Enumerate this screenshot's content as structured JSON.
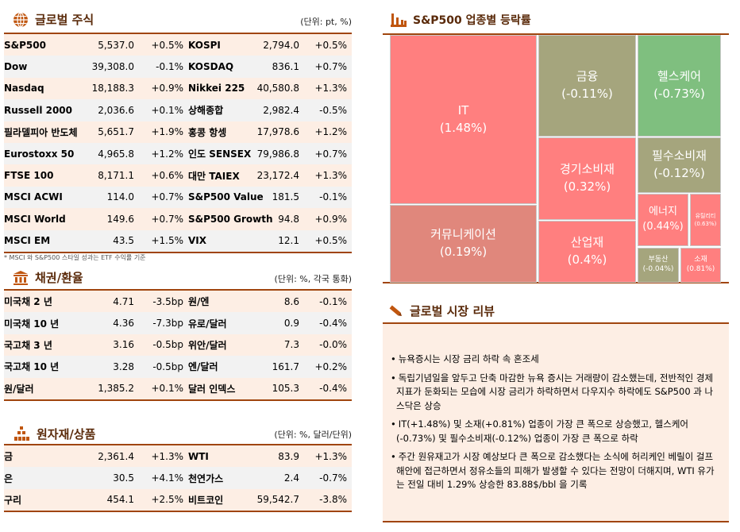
{
  "global_stocks": {
    "title": "글로벌 주식",
    "unit": "(단위: pt, %)",
    "icon": "globe-icon",
    "rows": [
      [
        "S&P500",
        "5,537.0",
        "+0.5%",
        "KOSPI",
        "2,794.0",
        "+0.5%"
      ],
      [
        "Dow",
        "39,308.0",
        "-0.1%",
        "KOSDAQ",
        "836.1",
        "+0.7%"
      ],
      [
        "Nasdaq",
        "18,188.3",
        "+0.9%",
        "Nikkei 225",
        "40,580.8",
        "+1.3%"
      ],
      [
        "Russell 2000",
        "2,036.6",
        "+0.1%",
        "상해종합",
        "2,982.4",
        "-0.5%"
      ],
      [
        "필라델피아 반도체",
        "5,651.7",
        "+1.9%",
        "홍콩 항셍",
        "17,978.6",
        "+1.2%"
      ],
      [
        "Eurostoxx 50",
        "4,965.8",
        "+1.2%",
        "인도 SENSEX",
        "79,986.8",
        "+0.7%"
      ],
      [
        "FTSE 100",
        "8,171.1",
        "+0.6%",
        "대만 TAIEX",
        "23,172.4",
        "+1.3%"
      ],
      [
        "MSCI ACWI",
        "114.0",
        "+0.7%",
        "S&P500 Value",
        "181.5",
        "-0.1%"
      ],
      [
        "MSCI World",
        "149.6",
        "+0.7%",
        "S&P500 Growth",
        "94.8",
        "+0.9%"
      ],
      [
        "MSCI EM",
        "43.5",
        "+1.5%",
        "VIX",
        "12.1",
        "+0.5%"
      ]
    ],
    "note": "* MSCI 와 S&P500 스타일 성과는 ETF 수익률 기준"
  },
  "bonds_fx": {
    "title": "채권/환율",
    "unit": "(단위: %, 각국 통화)",
    "icon": "bank-icon",
    "rows": [
      [
        "미국채 2 년",
        "4.71",
        "-3.5bp",
        "원/엔",
        "8.6",
        "-0.1%"
      ],
      [
        "미국채 10 년",
        "4.36",
        "-7.3bp",
        "유로/달러",
        "0.9",
        "-0.4%"
      ],
      [
        "국고채 3 년",
        "3.16",
        "-0.5bp",
        "위안/달러",
        "7.3",
        "-0.0%"
      ],
      [
        "국고채 10 년",
        "3.28",
        "-0.5bp",
        "엔/달러",
        "161.7",
        "+0.2%"
      ],
      [
        "원/달러",
        "1,385.2",
        "+0.1%",
        "달러 인덱스",
        "105.3",
        "-0.4%"
      ]
    ]
  },
  "commodities": {
    "title": "원자재/상품",
    "unit": "(단위: %, 달러/단위)",
    "icon": "gold-bars-icon",
    "rows": [
      [
        "금",
        "2,361.4",
        "+1.3%",
        "WTI",
        "83.9",
        "+1.3%"
      ],
      [
        "은",
        "30.5",
        "+4.1%",
        "천연가스",
        "2.4",
        "-0.7%"
      ],
      [
        "구리",
        "454.1",
        "+2.5%",
        "비트코인",
        "59,542.7",
        "-3.8%"
      ]
    ]
  },
  "treemap": {
    "title": "S&P500 업종별 등락률",
    "icon": "bar-chart-icon",
    "colors": {
      "up": "#ff7f7f",
      "up_mild": "#e0877c",
      "flat": "#a5a57d",
      "down": "#7fbf7f"
    },
    "sectors": [
      {
        "name": "IT",
        "value": "(1.48%)"
      },
      {
        "name": "커뮤니케이션",
        "value": "(0.19%)"
      },
      {
        "name": "금융",
        "value": "(-0.11%)"
      },
      {
        "name": "헬스케어",
        "value": "(-0.73%)"
      },
      {
        "name": "경기소비재",
        "value": "(0.32%)"
      },
      {
        "name": "산업재",
        "value": "(0.4%)"
      },
      {
        "name": "필수소비재",
        "value": "(-0.12%)"
      },
      {
        "name": "에너지",
        "value": "(0.44%)"
      },
      {
        "name": "유틸리티",
        "value": "(0.63%)"
      },
      {
        "name": "부동산",
        "value": "(-0.04%)"
      },
      {
        "name": "소재",
        "value": "(0.81%)"
      }
    ]
  },
  "review": {
    "title": "글로벌 시장 리뷰",
    "icon": "pen-icon",
    "items": [
      "뉴욕증시는 시장 금리 하락 속 혼조세",
      "독립기념일을 앞두고 단축 마감한 뉴욕 증시는 거래량이 감소했는데, 전반적인 경제지표가 둔화되는 모습에 시장 금리가 하락하면서 다우지수 하락에도 S&P500 과 나스닥은 상승",
      "IT(+1.48%) 및 소재(+0.81%) 업종이 가장 큰 폭으로 상승했고, 헬스케어(-0.73%) 및 필수소비재(-0.12%) 업종이 가장 큰 폭으로 하락",
      "주간 원유재고가 시장 예상보다 큰 폭으로 감소했다는 소식에 허리케인 베릴이 걸프 해안에 접근하면서 정유소들의 피해가 발생할 수 있다는 전망이 더해지며, WTI 유가는 전일 대비 1.29% 상승한 83.88$/bbl 을 기록"
    ]
  }
}
